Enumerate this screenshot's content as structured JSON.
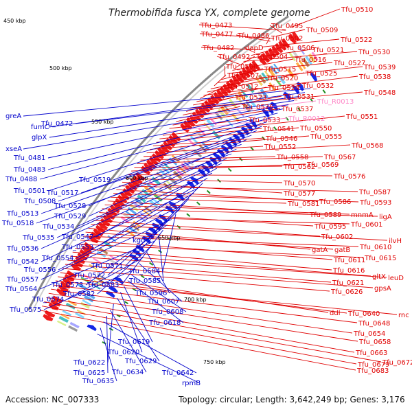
{
  "title": "Thermobifida fusca YX, complete genome",
  "footer": {
    "accession": "Accession: NC_007333",
    "summary": "Topology: circular; Length: 3,642,249 bp; Genes: 3,176"
  },
  "kbp_ticks": [
    {
      "label": "450 kbp"
    },
    {
      "label": "500 kbp"
    },
    {
      "label": "550 kbp"
    },
    {
      "label": "600 kbp"
    },
    {
      "label": "650 kbp"
    },
    {
      "label": "700 kbp"
    },
    {
      "label": "750 kbp"
    }
  ],
  "right_labels": [
    {
      "text": "Tfu_0510",
      "tone": "red"
    },
    {
      "text": "Tfu_0473",
      "tone": "red"
    },
    {
      "text": "Tfu_0495",
      "tone": "red"
    },
    {
      "text": "Tfu_0509",
      "tone": "red"
    },
    {
      "text": "Tfu_0477",
      "tone": "red"
    },
    {
      "text": "Tfu_0486",
      "tone": "red"
    },
    {
      "text": "Tfu_0502",
      "tone": "red"
    },
    {
      "text": "Tfu_0522",
      "tone": "red"
    },
    {
      "text": "Tfu_0482",
      "tone": "red"
    },
    {
      "text": "dapD",
      "tone": "red"
    },
    {
      "text": "Tfu_0506",
      "tone": "red"
    },
    {
      "text": "Tfu_0521",
      "tone": "red"
    },
    {
      "text": "Tfu_0530",
      "tone": "red"
    },
    {
      "text": "Tfu_0492",
      "tone": "red"
    },
    {
      "text": "Tfu_0504",
      "tone": "red"
    },
    {
      "text": "Tfu_0516",
      "tone": "red"
    },
    {
      "text": "Tfu_0527",
      "tone": "red"
    },
    {
      "text": "Tfu_0500",
      "tone": "red"
    },
    {
      "text": "Tfu_0515",
      "tone": "red"
    },
    {
      "text": "Tfu_0539",
      "tone": "red"
    },
    {
      "text": "Tfu_0507",
      "tone": "red"
    },
    {
      "text": "Tfu_0520",
      "tone": "red"
    },
    {
      "text": "Tfu_0525",
      "tone": "red"
    },
    {
      "text": "Tfu_0538",
      "tone": "red"
    },
    {
      "text": "Tfu_0512",
      "tone": "red"
    },
    {
      "text": "Tfu_0524",
      "tone": "red"
    },
    {
      "text": "Tfu_0532",
      "tone": "red"
    },
    {
      "text": "Tfu_0548",
      "tone": "red"
    },
    {
      "text": "Tfu_0523",
      "tone": "red"
    },
    {
      "text": "Tfu_0531",
      "tone": "red"
    },
    {
      "text": "Tfu_R0013",
      "tone": "pink"
    },
    {
      "text": "Tfu_0526",
      "tone": "red"
    },
    {
      "text": "Tfu_0537",
      "tone": "red"
    },
    {
      "text": "Tfu_0533",
      "tone": "red"
    },
    {
      "text": "Tfu_R0012",
      "tone": "pink"
    },
    {
      "text": "Tfu_0551",
      "tone": "red"
    },
    {
      "text": "Tfu_0541",
      "tone": "red"
    },
    {
      "text": "Tfu_0550",
      "tone": "red"
    },
    {
      "text": "Tfu_0546",
      "tone": "red"
    },
    {
      "text": "Tfu_0555",
      "tone": "red"
    },
    {
      "text": "Tfu_0552",
      "tone": "red"
    },
    {
      "text": "Tfu_0568",
      "tone": "red"
    },
    {
      "text": "Tfu_0558",
      "tone": "red"
    },
    {
      "text": "Tfu_0567",
      "tone": "red"
    },
    {
      "text": "Tfu_0562",
      "tone": "red"
    },
    {
      "text": "Tfu_0569",
      "tone": "red"
    },
    {
      "text": "Tfu_0576",
      "tone": "red"
    },
    {
      "text": "Tfu_0570",
      "tone": "red"
    },
    {
      "text": "Tfu_0577",
      "tone": "red"
    },
    {
      "text": "Tfu_0587",
      "tone": "red"
    },
    {
      "text": "Tfu_0586",
      "tone": "red"
    },
    {
      "text": "Tfu_0593",
      "tone": "red"
    },
    {
      "text": "Tfu_0581",
      "tone": "red"
    },
    {
      "text": "Tfu_0589",
      "tone": "red"
    },
    {
      "text": "mnmA",
      "tone": "red"
    },
    {
      "text": "ligA",
      "tone": "red"
    },
    {
      "text": "Tfu_0595",
      "tone": "red"
    },
    {
      "text": "Tfu_0601",
      "tone": "red"
    },
    {
      "text": "Tfu_0602",
      "tone": "red"
    },
    {
      "text": "ilvH",
      "tone": "red"
    },
    {
      "text": "gatA",
      "tone": "red"
    },
    {
      "text": "gatB",
      "tone": "red"
    },
    {
      "text": "Tfu_0610",
      "tone": "red"
    },
    {
      "text": "Tfu_0611",
      "tone": "red"
    },
    {
      "text": "Tfu_0615",
      "tone": "red"
    },
    {
      "text": "Tfu_0616",
      "tone": "red"
    },
    {
      "text": "gltX",
      "tone": "red"
    },
    {
      "text": "leuD",
      "tone": "red"
    },
    {
      "text": "Tfu_0621",
      "tone": "red"
    },
    {
      "text": "gpsA",
      "tone": "red"
    },
    {
      "text": "Tfu_0626",
      "tone": "red"
    },
    {
      "text": "ddl",
      "tone": "red"
    },
    {
      "text": "Tfu_0640",
      "tone": "red"
    },
    {
      "text": "rnc",
      "tone": "red"
    },
    {
      "text": "Tfu_0648",
      "tone": "red"
    },
    {
      "text": "Tfu_0654",
      "tone": "red"
    },
    {
      "text": "Tfu_0658",
      "tone": "red"
    },
    {
      "text": "Tfu_0663",
      "tone": "red"
    },
    {
      "text": "Tfu_0672",
      "tone": "red"
    },
    {
      "text": "Tfu_0679",
      "tone": "red"
    },
    {
      "text": "Tfu_0683",
      "tone": "red"
    }
  ],
  "left_labels": [
    "greA",
    "fumC",
    "Tfu_0472",
    "glpX",
    "xseA",
    "Tfu_0481",
    "Tfu_0483",
    "Tfu_0488",
    "Tfu_0501",
    "Tfu_0519",
    "Tfu_0517",
    "Tfu_0508",
    "Tfu_0528",
    "Tfu_0513",
    "Tfu_0529",
    "Tfu_0518",
    "Tfu_0534",
    "Tfu_0535",
    "Tfu_0547",
    "Tfu_0536",
    "Tfu_0553",
    "kgd",
    "Tfu_0542",
    "Tfu_0554",
    "Tfu_0571",
    "Tfu_0556",
    "Tfu_0572",
    "Tfu_0584",
    "Tfu_0557",
    "Tfu_0573",
    "Tfu_0583",
    "Tfu_0585",
    "Tfu_0564",
    "Tfu_0582",
    "Tfu_0596",
    "Tfu_0574",
    "Tfu_0607",
    "Tfu_0575",
    "Tfu_0608",
    "Tfu_0618",
    "Tfu_0619",
    "Tfu_0620",
    "Tfu_0629",
    "Tfu_0622",
    "Tfu_0634",
    "Tfu_0625",
    "Tfu_0642",
    "Tfu_0635",
    "rpmB"
  ],
  "colors": {
    "forward_feature": "#ee1c1c",
    "reverse_feature": "#1428e6",
    "right_label": "#e00000",
    "rna_label": "#ff88c8",
    "left_label": "#0000cc",
    "backbone": "#888888",
    "gc_ticks": "#1e8c1e"
  }
}
